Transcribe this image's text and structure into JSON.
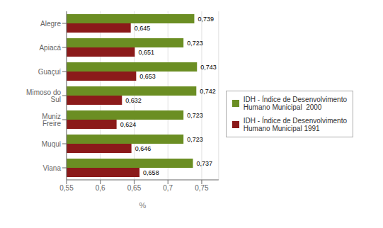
{
  "chart_data": {
    "type": "bar",
    "orientation": "horizontal",
    "categories": [
      "Alegre",
      "Apiacá",
      "Guaçuí",
      "Mimoso do Sul",
      "Muniz Freire",
      "Muqui",
      "Viana"
    ],
    "series": [
      {
        "name": "IDH - Índice de Desenvolvimento\nHumano Municipal  2000",
        "color": "#6B8E23",
        "values": [
          0.739,
          0.723,
          0.743,
          0.742,
          0.723,
          0.723,
          0.737
        ],
        "value_labels": [
          "0,739",
          "0,723",
          "0,743",
          "0,742",
          "0,723",
          "0,723",
          "0,737"
        ]
      },
      {
        "name": "IDH - Índice de Desenvolvimento\nHumano Municipal 1991",
        "color": "#8B1A1A",
        "values": [
          0.645,
          0.651,
          0.653,
          0.632,
          0.624,
          0.646,
          0.658
        ],
        "value_labels": [
          "0,645",
          "0,651",
          "0,653",
          "0,632",
          "0,624",
          "0,646",
          "0,658"
        ]
      }
    ],
    "xlabel": "%",
    "xlim": [
      0.55,
      0.775
    ],
    "xticks": [
      {
        "value": 0.55,
        "label": "0,55"
      },
      {
        "value": 0.6,
        "label": "0,6"
      },
      {
        "value": 0.65,
        "label": "0,65"
      },
      {
        "value": 0.7,
        "label": "0,7"
      },
      {
        "value": 0.75,
        "label": "0,75"
      }
    ],
    "grid": true,
    "legend": "right",
    "data_labels": true
  }
}
